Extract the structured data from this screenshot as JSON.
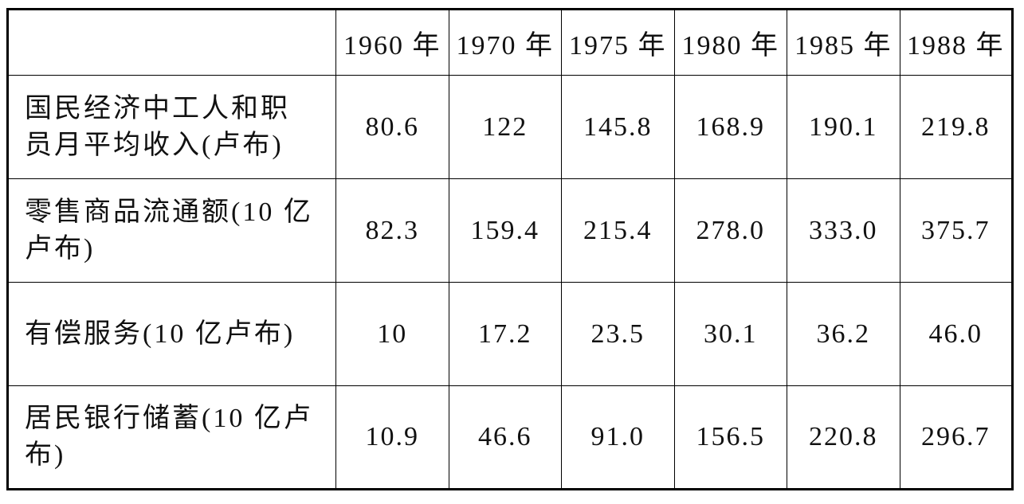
{
  "table": {
    "header": [
      "",
      "1960 年",
      "1970 年",
      "1975 年",
      "1980 年",
      "1985 年",
      "1988 年"
    ],
    "rows": [
      {
        "label": [
          "国民经济中工人和职",
          "员月平均收入(卢布)"
        ],
        "values": [
          "80.6",
          "122",
          "145.8",
          "168.9",
          "190.1",
          "219.8"
        ]
      },
      {
        "label": [
          "零售商品流通额(10 亿",
          "卢布)"
        ],
        "values": [
          "82.3",
          "159.4",
          "215.4",
          "278.0",
          "333.0",
          "375.7"
        ]
      },
      {
        "label": [
          "有偿服务(10 亿卢布)"
        ],
        "values": [
          "10",
          "17.2",
          "23.5",
          "30.1",
          "36.2",
          "46.0"
        ]
      },
      {
        "label": [
          "居民银行储蓄(10 亿卢",
          "布)"
        ],
        "values": [
          "10.9",
          "46.6",
          "91.0",
          "156.5",
          "220.8",
          "296.7"
        ]
      }
    ]
  }
}
